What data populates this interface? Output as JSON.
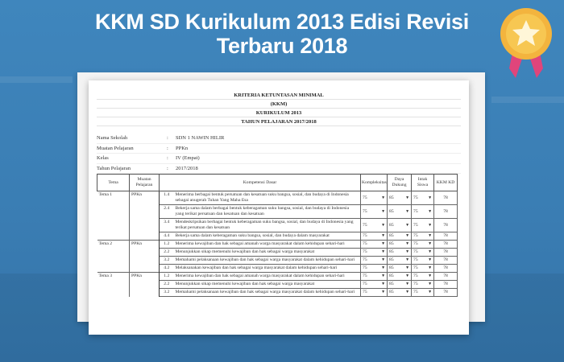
{
  "banner": {
    "title_line1": "KKM SD Kurikulum 2013 Edisi Revisi",
    "title_line2": "Terbaru 2018",
    "badge_icon": "star-medal-icon",
    "background_color": "#3a7db3",
    "badge_color": "#f5b942",
    "ribbon_color": "#e0457b"
  },
  "document": {
    "heading": [
      "KRITERIA KETUNTASAN MINIMAL",
      "(KKM)",
      "KURIKULUM 2013",
      "TAHUN PELAJARAN 2017/2018"
    ],
    "info": [
      {
        "label": "Nama Sekolah",
        "sep": ":",
        "value": "SDN 1 NAWIN HILIR"
      },
      {
        "label": "Muatan Pelajaran",
        "sep": ":",
        "value": "PPKn"
      },
      {
        "label": "Kelas",
        "sep": ":",
        "value": "IV (Empat)"
      },
      {
        "label": "Tahun Pelajaran",
        "sep": ":",
        "value": "2017/2018"
      }
    ],
    "columns": [
      "Tema",
      "Muatan Pelajaran",
      "Kompetensi Dasar",
      "Kompleksitas",
      "Daya Dukung",
      "Intak Siswa",
      "KKM KD"
    ],
    "rows": [
      {
        "tema": "Tema 1",
        "muatan": "PPKn",
        "no": "1.4",
        "kd": "Menerima berbagai bentuk persatuan dan kesatuan suku bangsa, sosial, dan budaya di Indonesia sebagai anugerah Tuhan Yang Maha Esa",
        "kompleksitas": "75",
        "daya": "85",
        "intak": "75",
        "kkm": "78"
      },
      {
        "tema": "",
        "muatan": "",
        "no": "2.4",
        "kd": "Bekerja sama dalam berbagai bentuk keberagaman suku bangsa, sosial, dan budaya di Indonesia yang terikat persatuan dan kesatuan dan kesatuan",
        "kompleksitas": "75",
        "daya": "85",
        "intak": "75",
        "kkm": "78"
      },
      {
        "tema": "",
        "muatan": "",
        "no": "3.4",
        "kd": "Mendeskripsikan berbagai bentuk keberagaman suku bangsa, sosial, dan budaya di Indonesia yang terikat persatuan dan kesatuan",
        "kompleksitas": "75",
        "daya": "85",
        "intak": "75",
        "kkm": "78"
      },
      {
        "tema": "",
        "muatan": "",
        "no": "4.4",
        "kd": "Bekerja sama dalam keberagaman suku bangsa, sosial, dan budaya dalam masyarakat",
        "kompleksitas": "75",
        "daya": "85",
        "intak": "75",
        "kkm": "78"
      },
      {
        "tema": "Tema 2",
        "muatan": "PPKn",
        "no": "1.2",
        "kd": "Menerima kewajiban dan hak sebagai amanah warga masyarakat dalam kehidupan sehari-hari",
        "kompleksitas": "75",
        "daya": "85",
        "intak": "75",
        "kkm": "78"
      },
      {
        "tema": "",
        "muatan": "",
        "no": "2.2",
        "kd": "Menunjukkan sikap memenuhi kewajiban dan hak sebagai warga masyarakat",
        "kompleksitas": "75",
        "daya": "85",
        "intak": "75",
        "kkm": "78"
      },
      {
        "tema": "",
        "muatan": "",
        "no": "3.2",
        "kd": "Memahami pelaksanaan kewajiban dan hak sebagai warga masyarakat dalam kehidupan sehari-hari",
        "kompleksitas": "75",
        "daya": "85",
        "intak": "75",
        "kkm": "78"
      },
      {
        "tema": "",
        "muatan": "",
        "no": "4.2",
        "kd": "Melaksanakan kewajiban dan hak sebagai warga masyarakat dalam kehidupan sehari-hari",
        "kompleksitas": "75",
        "daya": "85",
        "intak": "75",
        "kkm": "78"
      },
      {
        "tema": "Tema 3",
        "muatan": "PPKn",
        "no": "1.2",
        "kd": "Menerima kewajiban dan hak sebagai amanah warga masyarakat dalam kehidupan sehari-hari",
        "kompleksitas": "75",
        "daya": "85",
        "intak": "75",
        "kkm": "78"
      },
      {
        "tema": "",
        "muatan": "",
        "no": "2.2",
        "kd": "Menunjukkan sikap memenuhi kewajiban dan hak sebagai warga masyarakat",
        "kompleksitas": "75",
        "daya": "85",
        "intak": "75",
        "kkm": "78"
      },
      {
        "tema": "",
        "muatan": "",
        "no": "3.2",
        "kd": "Memahami pelaksanaan kewajiban dan hak sebagai warga masyarakat dalam kehidupan sehari-hari",
        "kompleksitas": "75",
        "daya": "85",
        "intak": "75",
        "kkm": "78"
      }
    ]
  }
}
